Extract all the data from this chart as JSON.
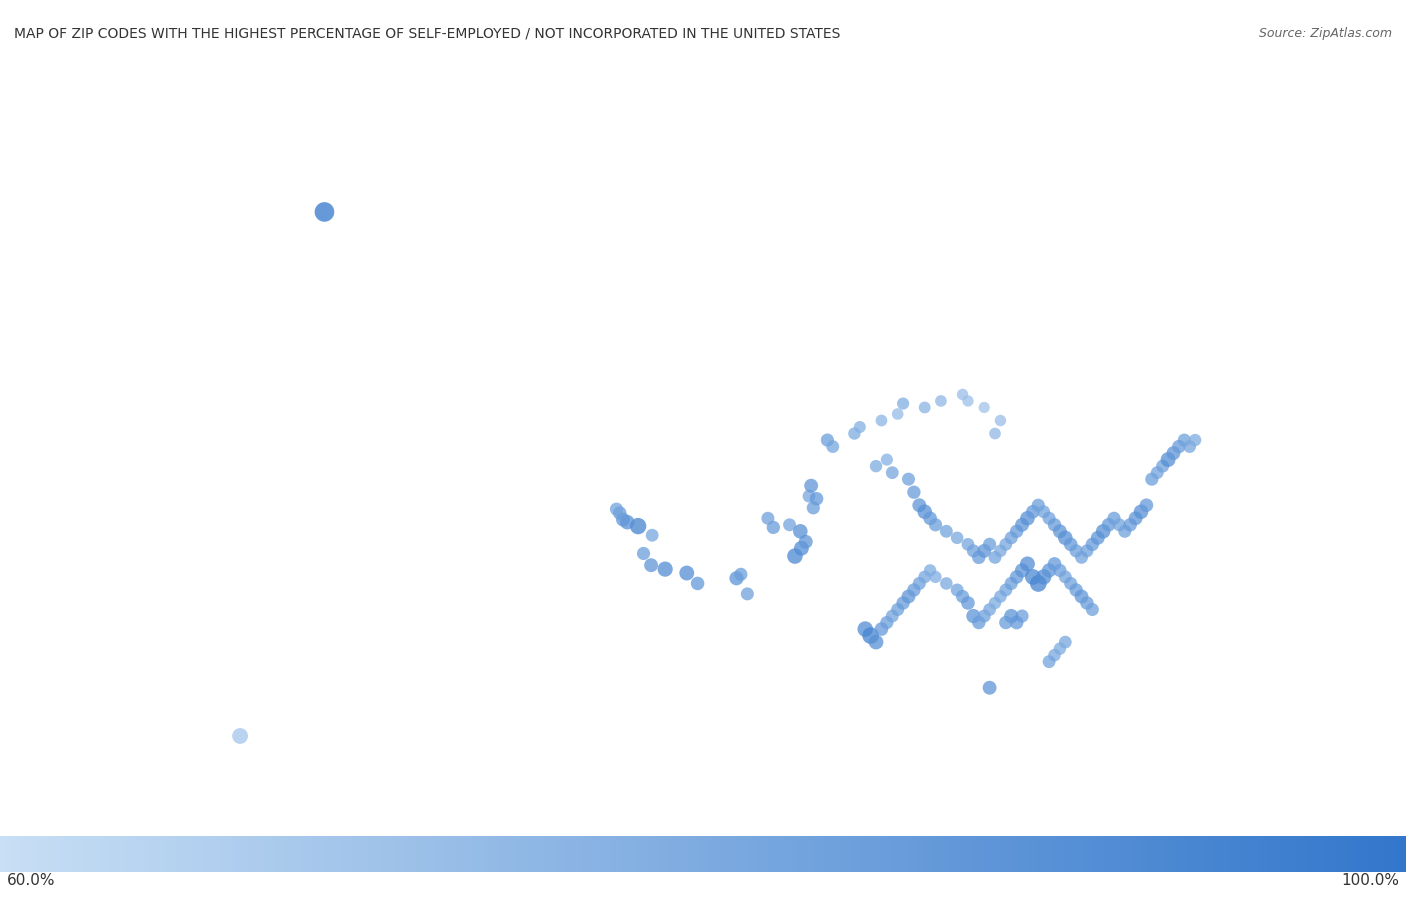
{
  "title": "MAP OF ZIP CODES WITH THE HIGHEST PERCENTAGE OF SELF-EMPLOYED / NOT INCORPORATED IN THE UNITED STATES",
  "source": "Source: ZipAtlas.com",
  "legend_min": "60.0%",
  "legend_max": "100.0%",
  "background_color": "#ffffff",
  "map_ocean_color": "#d6e4f0",
  "map_land_color": "#f0f0f0",
  "map_border_color": "#cccccc",
  "title_fontsize": 10,
  "source_fontsize": 9,
  "colorbar_low": "#c8dff5",
  "colorbar_high": "#3377cc",
  "points": [
    {
      "lon": -150.0,
      "lat": 61.5,
      "value": 100.0,
      "size": 200
    },
    {
      "lon": -118.5,
      "lat": 34.1,
      "value": 92.0,
      "size": 120
    },
    {
      "lon": -119.8,
      "lat": 34.4,
      "value": 88.0,
      "size": 100
    },
    {
      "lon": -120.5,
      "lat": 35.3,
      "value": 85.0,
      "size": 90
    },
    {
      "lon": -119.7,
      "lat": 36.7,
      "value": 82.0,
      "size": 85
    },
    {
      "lon": -121.0,
      "lat": 37.4,
      "value": 95.0,
      "size": 140
    },
    {
      "lon": -122.0,
      "lat": 37.7,
      "value": 90.0,
      "size": 110
    },
    {
      "lon": -122.4,
      "lat": 37.9,
      "value": 88.0,
      "size": 100
    },
    {
      "lon": -122.7,
      "lat": 38.4,
      "value": 86.0,
      "size": 95
    },
    {
      "lon": -123.0,
      "lat": 38.7,
      "value": 83.0,
      "size": 90
    },
    {
      "lon": -116.5,
      "lat": 33.8,
      "value": 91.0,
      "size": 115
    },
    {
      "lon": -115.5,
      "lat": 33.0,
      "value": 87.0,
      "size": 95
    },
    {
      "lon": -111.9,
      "lat": 33.4,
      "value": 89.0,
      "size": 105
    },
    {
      "lon": -111.5,
      "lat": 33.7,
      "value": 85.0,
      "size": 90
    },
    {
      "lon": -110.9,
      "lat": 32.2,
      "value": 84.0,
      "size": 88
    },
    {
      "lon": -106.5,
      "lat": 35.1,
      "value": 93.0,
      "size": 125
    },
    {
      "lon": -105.9,
      "lat": 35.7,
      "value": 91.0,
      "size": 115
    },
    {
      "lon": -105.5,
      "lat": 36.2,
      "value": 88.0,
      "size": 100
    },
    {
      "lon": -104.8,
      "lat": 38.8,
      "value": 85.0,
      "size": 90
    },
    {
      "lon": -105.2,
      "lat": 39.7,
      "value": 82.0,
      "size": 85
    },
    {
      "lon": -104.5,
      "lat": 39.5,
      "value": 87.0,
      "size": 95
    },
    {
      "lon": -108.5,
      "lat": 37.3,
      "value": 86.0,
      "size": 92
    },
    {
      "lon": -109.0,
      "lat": 38.0,
      "value": 84.0,
      "size": 88
    },
    {
      "lon": -107.0,
      "lat": 37.5,
      "value": 83.0,
      "size": 86
    },
    {
      "lon": -106.0,
      "lat": 37.0,
      "value": 90.0,
      "size": 110
    },
    {
      "lon": -105.0,
      "lat": 40.5,
      "value": 88.0,
      "size": 100
    },
    {
      "lon": -103.5,
      "lat": 44.0,
      "value": 85.0,
      "size": 90
    },
    {
      "lon": -103.0,
      "lat": 43.5,
      "value": 82.0,
      "size": 85
    },
    {
      "lon": -101.0,
      "lat": 44.5,
      "value": 80.0,
      "size": 80
    },
    {
      "lon": -100.5,
      "lat": 45.0,
      "value": 78.0,
      "size": 75
    },
    {
      "lon": -98.5,
      "lat": 45.5,
      "value": 76.0,
      "size": 72
    },
    {
      "lon": -97.0,
      "lat": 46.0,
      "value": 74.0,
      "size": 70
    },
    {
      "lon": -96.5,
      "lat": 46.8,
      "value": 79.0,
      "size": 77
    },
    {
      "lon": -94.5,
      "lat": 46.5,
      "value": 77.0,
      "size": 73
    },
    {
      "lon": -93.0,
      "lat": 47.0,
      "value": 75.0,
      "size": 71
    },
    {
      "lon": -91.0,
      "lat": 47.5,
      "value": 73.0,
      "size": 68
    },
    {
      "lon": -90.5,
      "lat": 47.0,
      "value": 72.0,
      "size": 67
    },
    {
      "lon": -89.0,
      "lat": 46.5,
      "value": 71.0,
      "size": 65
    },
    {
      "lon": -87.5,
      "lat": 45.5,
      "value": 73.0,
      "size": 68
    },
    {
      "lon": -88.0,
      "lat": 44.5,
      "value": 75.0,
      "size": 71
    },
    {
      "lon": -99.0,
      "lat": 42.0,
      "value": 80.0,
      "size": 80
    },
    {
      "lon": -98.0,
      "lat": 42.5,
      "value": 78.0,
      "size": 76
    },
    {
      "lon": -97.5,
      "lat": 41.5,
      "value": 82.0,
      "size": 85
    },
    {
      "lon": -96.0,
      "lat": 41.0,
      "value": 84.0,
      "size": 88
    },
    {
      "lon": -95.5,
      "lat": 40.0,
      "value": 86.0,
      "size": 92
    },
    {
      "lon": -95.0,
      "lat": 39.0,
      "value": 88.0,
      "size": 100
    },
    {
      "lon": -94.5,
      "lat": 38.5,
      "value": 90.0,
      "size": 110
    },
    {
      "lon": -94.0,
      "lat": 38.0,
      "value": 87.0,
      "size": 96
    },
    {
      "lon": -93.5,
      "lat": 37.5,
      "value": 85.0,
      "size": 90
    },
    {
      "lon": -92.5,
      "lat": 37.0,
      "value": 83.0,
      "size": 86
    },
    {
      "lon": -91.5,
      "lat": 36.5,
      "value": 81.0,
      "size": 82
    },
    {
      "lon": -90.5,
      "lat": 36.0,
      "value": 82.0,
      "size": 84
    },
    {
      "lon": -90.0,
      "lat": 35.5,
      "value": 84.0,
      "size": 88
    },
    {
      "lon": -89.5,
      "lat": 35.0,
      "value": 86.0,
      "size": 93
    },
    {
      "lon": -89.0,
      "lat": 35.5,
      "value": 88.0,
      "size": 100
    },
    {
      "lon": -88.5,
      "lat": 36.0,
      "value": 85.0,
      "size": 90
    },
    {
      "lon": -88.0,
      "lat": 35.0,
      "value": 83.0,
      "size": 86
    },
    {
      "lon": -87.5,
      "lat": 35.5,
      "value": 81.0,
      "size": 82
    },
    {
      "lon": -87.0,
      "lat": 36.0,
      "value": 82.0,
      "size": 84
    },
    {
      "lon": -86.5,
      "lat": 36.5,
      "value": 84.0,
      "size": 88
    },
    {
      "lon": -86.0,
      "lat": 37.0,
      "value": 86.0,
      "size": 93
    },
    {
      "lon": -85.5,
      "lat": 37.5,
      "value": 88.0,
      "size": 100
    },
    {
      "lon": -85.0,
      "lat": 38.0,
      "value": 90.0,
      "size": 110
    },
    {
      "lon": -84.5,
      "lat": 38.5,
      "value": 87.0,
      "size": 96
    },
    {
      "lon": -84.0,
      "lat": 39.0,
      "value": 85.0,
      "size": 90
    },
    {
      "lon": -83.5,
      "lat": 38.5,
      "value": 83.0,
      "size": 86
    },
    {
      "lon": -83.0,
      "lat": 38.0,
      "value": 84.0,
      "size": 88
    },
    {
      "lon": -82.5,
      "lat": 37.5,
      "value": 86.0,
      "size": 93
    },
    {
      "lon": -82.0,
      "lat": 37.0,
      "value": 88.0,
      "size": 100
    },
    {
      "lon": -81.5,
      "lat": 36.5,
      "value": 90.0,
      "size": 110
    },
    {
      "lon": -81.0,
      "lat": 36.0,
      "value": 87.0,
      "size": 96
    },
    {
      "lon": -80.5,
      "lat": 35.5,
      "value": 85.0,
      "size": 90
    },
    {
      "lon": -80.0,
      "lat": 35.0,
      "value": 83.0,
      "size": 86
    },
    {
      "lon": -79.5,
      "lat": 35.5,
      "value": 84.0,
      "size": 88
    },
    {
      "lon": -79.0,
      "lat": 36.0,
      "value": 86.0,
      "size": 93
    },
    {
      "lon": -78.5,
      "lat": 36.5,
      "value": 88.0,
      "size": 100
    },
    {
      "lon": -78.0,
      "lat": 37.0,
      "value": 90.0,
      "size": 110
    },
    {
      "lon": -77.5,
      "lat": 37.5,
      "value": 87.0,
      "size": 96
    },
    {
      "lon": -77.0,
      "lat": 38.0,
      "value": 85.0,
      "size": 90
    },
    {
      "lon": -76.5,
      "lat": 37.5,
      "value": 83.0,
      "size": 86
    },
    {
      "lon": -76.0,
      "lat": 37.0,
      "value": 84.0,
      "size": 88
    },
    {
      "lon": -75.5,
      "lat": 37.5,
      "value": 86.0,
      "size": 93
    },
    {
      "lon": -75.0,
      "lat": 38.0,
      "value": 88.0,
      "size": 100
    },
    {
      "lon": -74.5,
      "lat": 38.5,
      "value": 90.0,
      "size": 110
    },
    {
      "lon": -74.0,
      "lat": 39.0,
      "value": 87.0,
      "size": 96
    },
    {
      "lon": -73.5,
      "lat": 41.0,
      "value": 85.0,
      "size": 90
    },
    {
      "lon": -73.0,
      "lat": 41.5,
      "value": 83.0,
      "size": 86
    },
    {
      "lon": -72.5,
      "lat": 42.0,
      "value": 84.0,
      "size": 88
    },
    {
      "lon": -72.0,
      "lat": 42.5,
      "value": 91.0,
      "size": 115
    },
    {
      "lon": -71.5,
      "lat": 43.0,
      "value": 88.0,
      "size": 100
    },
    {
      "lon": -71.0,
      "lat": 43.5,
      "value": 86.0,
      "size": 93
    },
    {
      "lon": -70.5,
      "lat": 44.0,
      "value": 84.0,
      "size": 88
    },
    {
      "lon": -70.0,
      "lat": 43.5,
      "value": 82.0,
      "size": 84
    },
    {
      "lon": -69.5,
      "lat": 44.0,
      "value": 80.0,
      "size": 80
    },
    {
      "lon": -100.0,
      "lat": 29.5,
      "value": 92.0,
      "size": 125
    },
    {
      "lon": -99.5,
      "lat": 29.0,
      "value": 95.0,
      "size": 145
    },
    {
      "lon": -99.0,
      "lat": 28.5,
      "value": 90.0,
      "size": 112
    },
    {
      "lon": -98.5,
      "lat": 29.5,
      "value": 87.0,
      "size": 96
    },
    {
      "lon": -98.0,
      "lat": 30.0,
      "value": 85.0,
      "size": 90
    },
    {
      "lon": -97.5,
      "lat": 30.5,
      "value": 83.0,
      "size": 86
    },
    {
      "lon": -97.0,
      "lat": 31.0,
      "value": 84.0,
      "size": 88
    },
    {
      "lon": -96.5,
      "lat": 31.5,
      "value": 86.0,
      "size": 93
    },
    {
      "lon": -96.0,
      "lat": 32.0,
      "value": 88.0,
      "size": 100
    },
    {
      "lon": -95.5,
      "lat": 32.5,
      "value": 86.0,
      "size": 93
    },
    {
      "lon": -95.0,
      "lat": 33.0,
      "value": 84.0,
      "size": 88
    },
    {
      "lon": -94.5,
      "lat": 33.5,
      "value": 82.0,
      "size": 84
    },
    {
      "lon": -94.0,
      "lat": 34.0,
      "value": 80.0,
      "size": 80
    },
    {
      "lon": -93.5,
      "lat": 33.5,
      "value": 79.0,
      "size": 77
    },
    {
      "lon": -92.5,
      "lat": 33.0,
      "value": 81.0,
      "size": 82
    },
    {
      "lon": -91.5,
      "lat": 32.5,
      "value": 83.0,
      "size": 86
    },
    {
      "lon": -91.0,
      "lat": 32.0,
      "value": 85.0,
      "size": 90
    },
    {
      "lon": -90.5,
      "lat": 31.5,
      "value": 87.0,
      "size": 96
    },
    {
      "lon": -90.0,
      "lat": 30.5,
      "value": 89.0,
      "size": 105
    },
    {
      "lon": -89.5,
      "lat": 30.0,
      "value": 86.0,
      "size": 93
    },
    {
      "lon": -89.0,
      "lat": 30.5,
      "value": 84.0,
      "size": 88
    },
    {
      "lon": -88.5,
      "lat": 31.0,
      "value": 82.0,
      "size": 84
    },
    {
      "lon": -88.0,
      "lat": 31.5,
      "value": 80.0,
      "size": 80
    },
    {
      "lon": -87.5,
      "lat": 32.0,
      "value": 81.0,
      "size": 82
    },
    {
      "lon": -87.0,
      "lat": 32.5,
      "value": 83.0,
      "size": 86
    },
    {
      "lon": -86.5,
      "lat": 33.0,
      "value": 85.0,
      "size": 90
    },
    {
      "lon": -86.0,
      "lat": 33.5,
      "value": 87.0,
      "size": 96
    },
    {
      "lon": -85.5,
      "lat": 34.0,
      "value": 89.0,
      "size": 105
    },
    {
      "lon": -85.0,
      "lat": 34.5,
      "value": 91.0,
      "size": 115
    },
    {
      "lon": -84.5,
      "lat": 33.5,
      "value": 93.0,
      "size": 128
    },
    {
      "lon": -84.0,
      "lat": 33.0,
      "value": 95.0,
      "size": 145
    },
    {
      "lon": -83.5,
      "lat": 33.5,
      "value": 92.0,
      "size": 122
    },
    {
      "lon": -83.0,
      "lat": 34.0,
      "value": 89.0,
      "size": 105
    },
    {
      "lon": -82.5,
      "lat": 34.5,
      "value": 87.0,
      "size": 96
    },
    {
      "lon": -82.0,
      "lat": 34.0,
      "value": 85.0,
      "size": 90
    },
    {
      "lon": -81.5,
      "lat": 33.5,
      "value": 83.0,
      "size": 86
    },
    {
      "lon": -81.0,
      "lat": 33.0,
      "value": 84.0,
      "size": 88
    },
    {
      "lon": -80.5,
      "lat": 32.5,
      "value": 86.0,
      "size": 93
    },
    {
      "lon": -80.0,
      "lat": 32.0,
      "value": 88.0,
      "size": 100
    },
    {
      "lon": -79.5,
      "lat": 31.5,
      "value": 86.0,
      "size": 93
    },
    {
      "lon": -79.0,
      "lat": 31.0,
      "value": 84.0,
      "size": 88
    },
    {
      "lon": -81.5,
      "lat": 28.5,
      "value": 82.0,
      "size": 84
    },
    {
      "lon": -82.0,
      "lat": 28.0,
      "value": 80.0,
      "size": 80
    },
    {
      "lon": -82.5,
      "lat": 27.5,
      "value": 81.0,
      "size": 82
    },
    {
      "lon": -83.0,
      "lat": 27.0,
      "value": 83.0,
      "size": 86
    },
    {
      "lon": -85.5,
      "lat": 30.5,
      "value": 85.0,
      "size": 90
    },
    {
      "lon": -86.0,
      "lat": 30.0,
      "value": 87.0,
      "size": 96
    },
    {
      "lon": -86.5,
      "lat": 30.5,
      "value": 89.0,
      "size": 105
    },
    {
      "lon": -87.0,
      "lat": 30.0,
      "value": 86.0,
      "size": 93
    },
    {
      "lon": -88.5,
      "lat": 25.0,
      "value": 88.0,
      "size": 100
    },
    {
      "lon": -157.8,
      "lat": 21.3,
      "value": 70.0,
      "size": 130
    }
  ]
}
